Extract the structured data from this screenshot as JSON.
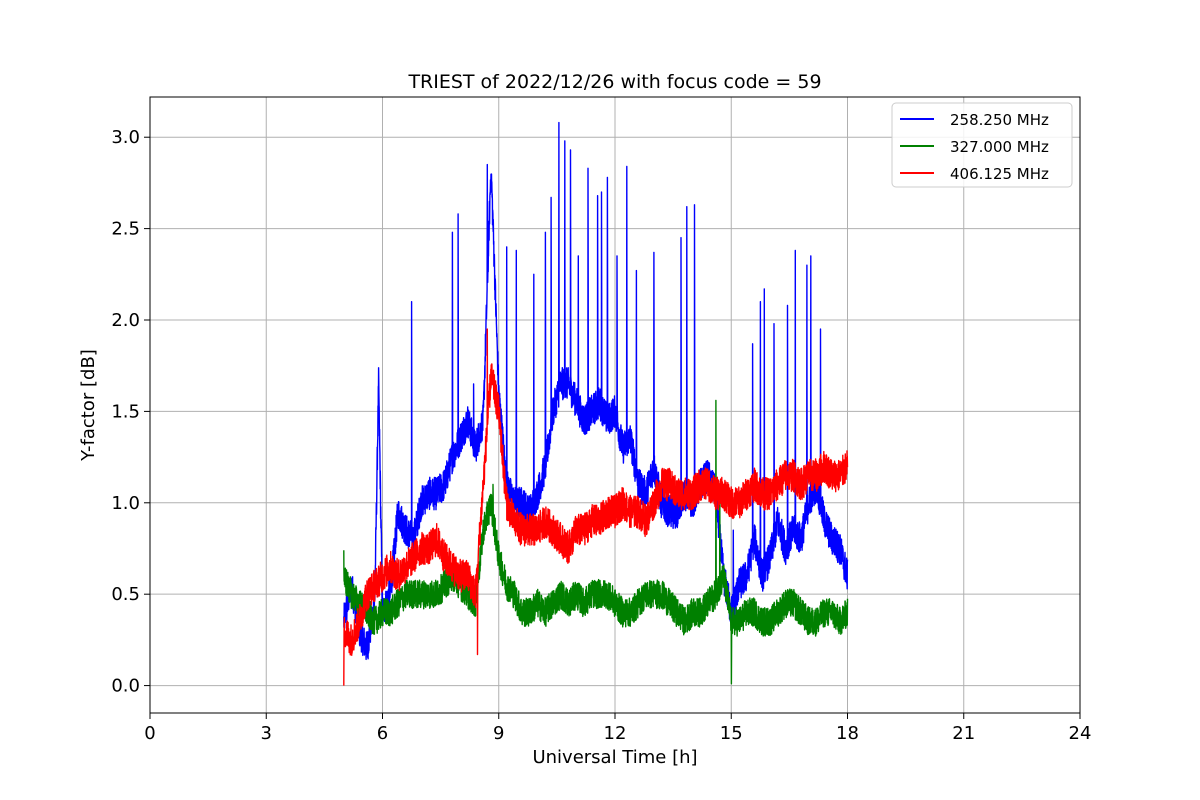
{
  "chart_data": {
    "type": "line",
    "title": "TRIEST of 2022/12/26 with focus code = 59",
    "xlabel": "Universal Time [h]",
    "ylabel": "Y-factor [dB]",
    "xlim": [
      0,
      24
    ],
    "ylim": [
      -0.15,
      3.22
    ],
    "xticks": [
      "0",
      "3",
      "6",
      "9",
      "12",
      "15",
      "18",
      "21",
      "24"
    ],
    "yticks": [
      "0.0",
      "0.5",
      "1.0",
      "1.5",
      "2.0",
      "2.5",
      "3.0"
    ],
    "grid": true,
    "legend_position": "top-right",
    "series": [
      {
        "name": "258.250 MHz",
        "color": "#0000ff",
        "x": [
          5.0,
          5.2,
          5.4,
          5.6,
          5.8,
          5.9,
          6.0,
          6.2,
          6.4,
          6.6,
          6.8,
          7.0,
          7.2,
          7.4,
          7.6,
          7.8,
          8.0,
          8.2,
          8.4,
          8.6,
          8.8,
          9.0,
          9.2,
          9.4,
          9.6,
          9.8,
          10.0,
          10.2,
          10.4,
          10.6,
          10.8,
          11.0,
          11.2,
          11.4,
          11.6,
          11.8,
          12.0,
          12.2,
          12.4,
          12.6,
          12.8,
          13.0,
          13.2,
          13.4,
          13.6,
          13.8,
          14.0,
          14.2,
          14.4,
          14.6,
          14.8,
          15.0,
          15.2,
          15.4,
          15.6,
          15.8,
          16.0,
          16.2,
          16.4,
          16.6,
          16.8,
          17.0,
          17.2,
          17.4,
          17.6,
          17.8,
          18.0
        ],
        "y": [
          0.35,
          0.55,
          0.3,
          0.2,
          0.45,
          1.65,
          0.4,
          0.5,
          0.95,
          0.85,
          0.8,
          1.0,
          1.05,
          1.05,
          1.1,
          1.25,
          1.35,
          1.45,
          1.3,
          1.45,
          2.85,
          1.6,
          1.1,
          1.0,
          1.0,
          0.95,
          1.05,
          1.2,
          1.5,
          1.65,
          1.65,
          1.55,
          1.45,
          1.5,
          1.55,
          1.45,
          1.5,
          1.3,
          1.35,
          1.1,
          1.05,
          1.2,
          1.0,
          0.95,
          0.95,
          1.05,
          1.0,
          1.1,
          1.15,
          1.05,
          0.6,
          0.4,
          0.55,
          0.6,
          0.8,
          0.6,
          0.7,
          0.9,
          0.75,
          0.85,
          0.8,
          1.0,
          1.1,
          0.9,
          0.8,
          0.75,
          0.6
        ],
        "spikes": [
          [
            5.9,
            1.65
          ],
          [
            6.75,
            2.1
          ],
          [
            7.8,
            2.48
          ],
          [
            7.95,
            2.58
          ],
          [
            8.35,
            1.65
          ],
          [
            8.7,
            2.85
          ],
          [
            8.8,
            2.7
          ],
          [
            9.2,
            2.4
          ],
          [
            9.45,
            2.38
          ],
          [
            9.9,
            2.25
          ],
          [
            10.2,
            2.48
          ],
          [
            10.35,
            2.67
          ],
          [
            10.55,
            3.08
          ],
          [
            10.7,
            2.98
          ],
          [
            10.85,
            2.93
          ],
          [
            11.05,
            2.35
          ],
          [
            11.3,
            2.83
          ],
          [
            11.55,
            2.68
          ],
          [
            11.65,
            2.7
          ],
          [
            11.8,
            2.78
          ],
          [
            12.05,
            2.35
          ],
          [
            12.3,
            2.84
          ],
          [
            12.55,
            2.27
          ],
          [
            13.0,
            2.37
          ],
          [
            13.7,
            2.45
          ],
          [
            13.85,
            2.62
          ],
          [
            14.05,
            2.63
          ],
          [
            15.05,
            0.85
          ],
          [
            15.55,
            1.87
          ],
          [
            15.75,
            2.1
          ],
          [
            15.85,
            2.17
          ],
          [
            16.1,
            1.98
          ],
          [
            16.45,
            2.08
          ],
          [
            16.65,
            2.38
          ],
          [
            16.95,
            2.3
          ],
          [
            17.05,
            2.35
          ],
          [
            17.3,
            1.95
          ]
        ]
      },
      {
        "name": "327.000 MHz",
        "color": "#008000",
        "x": [
          5.0,
          5.2,
          5.4,
          5.6,
          5.8,
          6.0,
          6.2,
          6.4,
          6.6,
          6.8,
          7.0,
          7.2,
          7.4,
          7.6,
          7.8,
          8.0,
          8.2,
          8.4,
          8.6,
          8.8,
          9.0,
          9.2,
          9.4,
          9.6,
          9.8,
          10.0,
          10.2,
          10.4,
          10.6,
          10.8,
          11.0,
          11.2,
          11.4,
          11.6,
          11.8,
          12.0,
          12.2,
          12.4,
          12.6,
          12.8,
          13.0,
          13.2,
          13.4,
          13.6,
          13.8,
          14.0,
          14.2,
          14.4,
          14.6,
          14.8,
          15.0,
          15.2,
          15.4,
          15.6,
          15.8,
          16.0,
          16.2,
          16.4,
          16.6,
          16.8,
          17.0,
          17.2,
          17.4,
          17.6,
          17.8,
          18.0
        ],
        "y": [
          0.6,
          0.5,
          0.45,
          0.4,
          0.35,
          0.4,
          0.4,
          0.45,
          0.5,
          0.5,
          0.5,
          0.5,
          0.5,
          0.55,
          0.6,
          0.55,
          0.5,
          0.45,
          0.85,
          1.0,
          0.7,
          0.55,
          0.5,
          0.4,
          0.4,
          0.45,
          0.4,
          0.45,
          0.5,
          0.45,
          0.5,
          0.45,
          0.5,
          0.5,
          0.5,
          0.45,
          0.4,
          0.4,
          0.45,
          0.5,
          0.5,
          0.5,
          0.45,
          0.4,
          0.35,
          0.4,
          0.4,
          0.45,
          0.5,
          0.6,
          0.35,
          0.35,
          0.4,
          0.4,
          0.35,
          0.35,
          0.4,
          0.45,
          0.45,
          0.4,
          0.35,
          0.35,
          0.4,
          0.4,
          0.35,
          0.4
        ],
        "spikes": [
          [
            5.0,
            0.74
          ],
          [
            8.85,
            1.1
          ],
          [
            14.6,
            1.56
          ],
          [
            14.7,
            1.1
          ],
          [
            15.0,
            0.01
          ]
        ]
      },
      {
        "name": "406.125 MHz",
        "color": "#ff0000",
        "x": [
          5.0,
          5.2,
          5.4,
          5.6,
          5.8,
          6.0,
          6.2,
          6.4,
          6.6,
          6.8,
          7.0,
          7.2,
          7.4,
          7.6,
          7.8,
          8.0,
          8.2,
          8.4,
          8.6,
          8.8,
          9.0,
          9.2,
          9.4,
          9.6,
          9.8,
          10.0,
          10.2,
          10.4,
          10.6,
          10.8,
          11.0,
          11.2,
          11.4,
          11.6,
          11.8,
          12.0,
          12.2,
          12.4,
          12.6,
          12.8,
          13.0,
          13.2,
          13.4,
          13.6,
          13.8,
          14.0,
          14.2,
          14.4,
          14.6,
          14.8,
          15.0,
          15.2,
          15.4,
          15.6,
          15.8,
          16.0,
          16.2,
          16.4,
          16.6,
          16.8,
          17.0,
          17.2,
          17.4,
          17.6,
          17.8,
          18.0
        ],
        "y": [
          0.3,
          0.25,
          0.35,
          0.5,
          0.55,
          0.6,
          0.65,
          0.6,
          0.65,
          0.7,
          0.75,
          0.75,
          0.8,
          0.7,
          0.65,
          0.6,
          0.6,
          0.5,
          1.1,
          1.7,
          1.5,
          1.0,
          0.9,
          0.85,
          0.85,
          0.85,
          0.9,
          0.85,
          0.8,
          0.75,
          0.85,
          0.85,
          0.9,
          0.9,
          0.95,
          0.95,
          1.0,
          0.95,
          0.95,
          0.9,
          1.0,
          1.1,
          1.1,
          1.05,
          1.05,
          1.05,
          1.1,
          1.1,
          1.05,
          1.05,
          1.0,
          1.0,
          1.05,
          1.1,
          1.05,
          1.05,
          1.1,
          1.15,
          1.15,
          1.1,
          1.15,
          1.15,
          1.2,
          1.15,
          1.15,
          1.2
        ],
        "spikes": [
          [
            5.0,
            0.0
          ],
          [
            8.7,
            1.95
          ],
          [
            8.45,
            0.17
          ],
          [
            9.0,
            1.45
          ]
        ]
      }
    ]
  }
}
